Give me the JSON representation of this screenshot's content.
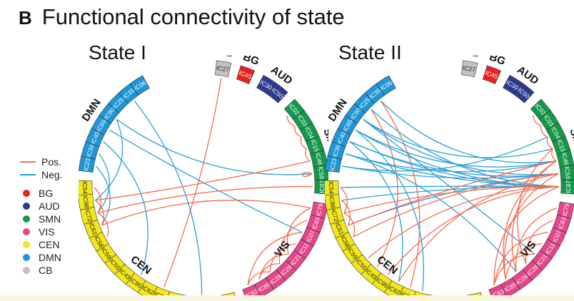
{
  "figure": {
    "panel_letter": "B",
    "title": "Functional connectivity of state"
  },
  "colors": {
    "positive": "#f26c4f",
    "negative": "#2a9fd8",
    "BG": "#e8231f",
    "AUD": "#2b3a8f",
    "SMN": "#14994a",
    "VIS": "#e4468c",
    "CEN": "#f2e61c",
    "DMN": "#1e96d8",
    "CB": "#c2c2c2"
  },
  "legend": {
    "lines": [
      {
        "key": "positive",
        "label": "Pos."
      },
      {
        "key": "negative",
        "label": "Neg."
      }
    ],
    "networks": [
      {
        "key": "BG",
        "label": "BG"
      },
      {
        "key": "AUD",
        "label": "AUD"
      },
      {
        "key": "SMN",
        "label": "SMN"
      },
      {
        "key": "VIS",
        "label": "VIS"
      },
      {
        "key": "CEN",
        "label": "CEN"
      },
      {
        "key": "DMN",
        "label": "DMN"
      },
      {
        "key": "CB",
        "label": "CB"
      }
    ]
  },
  "networks": [
    {
      "name": "CB",
      "components": [
        "IC27"
      ]
    },
    {
      "name": "BG",
      "components": [
        "IC45"
      ]
    },
    {
      "name": "AUD",
      "components": [
        "IC30",
        "IC50"
      ]
    },
    {
      "name": "SMN",
      "components": [
        "IC02",
        "IC03",
        "IC04",
        "IC15",
        "IC46",
        "IC59",
        "IC87"
      ]
    },
    {
      "name": "VIS",
      "components": [
        "IC79",
        "IC83",
        "IC07",
        "IC11",
        "IC21",
        "IC28",
        "IC29",
        "IC85",
        "IC63"
      ]
    },
    {
      "name": "CEN",
      "components": [
        "IC49",
        "IC68",
        "IC42",
        "IC70",
        "IC20",
        "IC60",
        "IC62",
        "IC95",
        "IC43",
        "IC55",
        "IC59",
        "IC58",
        "IC61",
        "IC72",
        "IC98",
        "IC54"
      ]
    },
    {
      "name": "DMN",
      "components": [
        "IC23",
        "IC39",
        "IC40",
        "IC65",
        "IC90",
        "IC25",
        "IC35",
        "IC06"
      ]
    }
  ],
  "states": [
    {
      "title": "State I",
      "connections": [
        {
          "a": "IC27",
          "b": "IC60",
          "sign": "positive"
        },
        {
          "a": "IC25",
          "b": "IC82",
          "sign": "negative"
        },
        {
          "a": "IC35",
          "b": "IC42",
          "sign": "negative"
        },
        {
          "a": "IC65",
          "b": "IC07",
          "sign": "negative"
        },
        {
          "a": "IC90",
          "b": "IC59",
          "sign": "negative"
        },
        {
          "a": "IC40",
          "b": "IC95",
          "sign": "negative"
        },
        {
          "a": "IC39",
          "b": "IC72",
          "sign": "negative"
        },
        {
          "a": "IC23",
          "b": "IC61",
          "sign": "negative"
        },
        {
          "a": "IC90",
          "b": "IC98",
          "sign": "negative"
        },
        {
          "a": "IC87",
          "b": "IC72",
          "sign": "positive"
        },
        {
          "a": "IC46",
          "b": "IC98",
          "sign": "positive"
        },
        {
          "a": "IC79",
          "b": "IC61",
          "sign": "positive"
        },
        {
          "a": "IC59",
          "b": "IC59",
          "sign": "positive"
        },
        {
          "a": "IC03",
          "b": "IC02",
          "sign": "positive"
        },
        {
          "a": "IC04",
          "b": "IC03",
          "sign": "positive"
        },
        {
          "a": "IC15",
          "b": "IC04",
          "sign": "positive"
        },
        {
          "a": "IC46",
          "b": "IC15",
          "sign": "positive"
        },
        {
          "a": "IC11",
          "b": "IC29",
          "sign": "positive"
        },
        {
          "a": "IC07",
          "b": "IC63",
          "sign": "positive"
        },
        {
          "a": "IC21",
          "b": "IC85",
          "sign": "positive"
        },
        {
          "a": "IC83",
          "b": "IC28",
          "sign": "positive"
        },
        {
          "a": "IC79",
          "b": "IC21",
          "sign": "positive"
        },
        {
          "a": "IC29",
          "b": "IC63",
          "sign": "positive"
        },
        {
          "a": "IC85",
          "b": "IC28",
          "sign": "positive"
        },
        {
          "a": "IC72",
          "b": "IC54",
          "sign": "positive"
        },
        {
          "a": "IC61",
          "b": "IC98",
          "sign": "positive"
        },
        {
          "a": "IC58",
          "b": "IC72",
          "sign": "positive"
        }
      ]
    },
    {
      "title": "State II",
      "connections": [
        {
          "a": "IC35",
          "b": "IC60",
          "sign": "positive"
        },
        {
          "a": "IC25",
          "b": "IC43",
          "sign": "positive"
        },
        {
          "a": "IC40",
          "b": "IC87",
          "sign": "negative"
        },
        {
          "a": "IC40",
          "b": "IC59",
          "sign": "negative"
        },
        {
          "a": "IC65",
          "b": "IC46",
          "sign": "negative"
        },
        {
          "a": "IC65",
          "b": "IC87",
          "sign": "negative"
        },
        {
          "a": "IC90",
          "b": "IC15",
          "sign": "negative"
        },
        {
          "a": "IC90",
          "b": "IC59",
          "sign": "negative"
        },
        {
          "a": "IC39",
          "b": "IC46",
          "sign": "negative"
        },
        {
          "a": "IC39",
          "b": "IC87",
          "sign": "negative"
        },
        {
          "a": "IC23",
          "b": "IC59",
          "sign": "negative"
        },
        {
          "a": "IC23",
          "b": "IC04",
          "sign": "negative"
        },
        {
          "a": "IC25",
          "b": "IC87",
          "sign": "negative"
        },
        {
          "a": "IC35",
          "b": "IC46",
          "sign": "negative"
        },
        {
          "a": "IC40",
          "b": "IC62",
          "sign": "negative"
        },
        {
          "a": "IC65",
          "b": "IC20",
          "sign": "negative"
        },
        {
          "a": "IC90",
          "b": "IC21",
          "sign": "negative"
        },
        {
          "a": "IC39",
          "b": "IC29",
          "sign": "negative"
        },
        {
          "a": "IC98",
          "b": "IC87",
          "sign": "negative"
        },
        {
          "a": "IC61",
          "b": "IC59",
          "sign": "negative"
        },
        {
          "a": "IC54",
          "b": "IC87",
          "sign": "negative"
        },
        {
          "a": "IC87",
          "b": "IC55",
          "sign": "positive"
        },
        {
          "a": "IC59",
          "b": "IC58",
          "sign": "positive"
        },
        {
          "a": "IC46",
          "b": "IC61",
          "sign": "positive"
        },
        {
          "a": "IC87",
          "b": "IC95",
          "sign": "positive"
        },
        {
          "a": "IC59",
          "b": "IC62",
          "sign": "positive"
        },
        {
          "a": "IC15",
          "b": "IC28",
          "sign": "positive"
        },
        {
          "a": "IC46",
          "b": "IC85",
          "sign": "positive"
        },
        {
          "a": "IC87",
          "b": "IC63",
          "sign": "positive"
        },
        {
          "a": "IC59",
          "b": "IC85",
          "sign": "positive"
        },
        {
          "a": "IC46",
          "b": "IC29",
          "sign": "positive"
        },
        {
          "a": "IC72",
          "b": "IC87",
          "sign": "positive"
        },
        {
          "a": "IC03",
          "b": "IC02",
          "sign": "positive"
        },
        {
          "a": "IC04",
          "b": "IC03",
          "sign": "positive"
        },
        {
          "a": "IC15",
          "b": "IC04",
          "sign": "positive"
        },
        {
          "a": "IC46",
          "b": "IC15",
          "sign": "positive"
        },
        {
          "a": "IC07",
          "b": "IC63",
          "sign": "positive"
        },
        {
          "a": "IC83",
          "b": "IC28",
          "sign": "positive"
        },
        {
          "a": "IC11",
          "b": "IC85",
          "sign": "positive"
        },
        {
          "a": "IC79",
          "b": "IC29",
          "sign": "positive"
        },
        {
          "a": "IC21",
          "b": "IC63",
          "sign": "positive"
        },
        {
          "a": "IC72",
          "b": "IC54",
          "sign": "positive"
        },
        {
          "a": "IC61",
          "b": "IC98",
          "sign": "positive"
        },
        {
          "a": "IC58",
          "b": "IC72",
          "sign": "positive"
        }
      ]
    }
  ]
}
